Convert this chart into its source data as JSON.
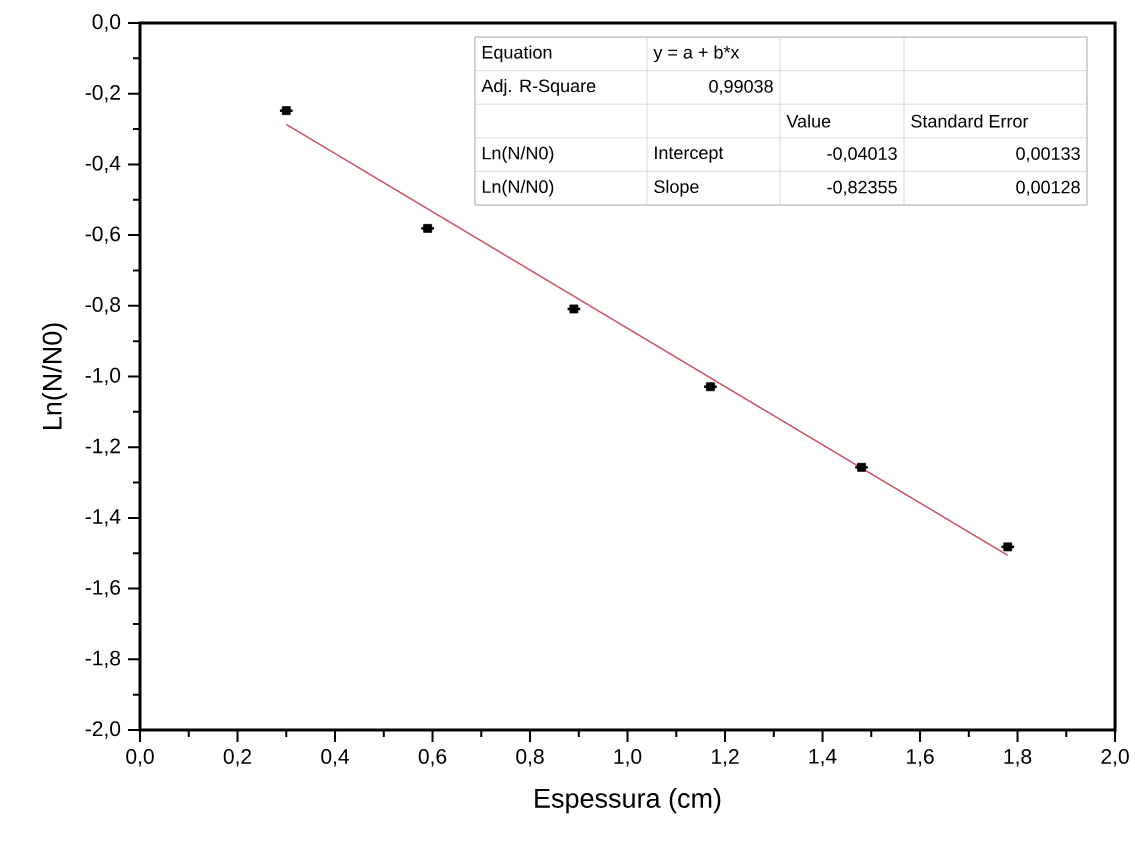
{
  "chart_data": {
    "type": "scatter",
    "xlabel": "Espessura (cm)",
    "ylabel": "Ln(N/N0)",
    "xlim": [
      0,
      2
    ],
    "ylim": [
      -2,
      0
    ],
    "xticks": [
      {
        "value": 0,
        "label": "0,0"
      },
      {
        "value": 0.2,
        "label": "0,2"
      },
      {
        "value": 0.4,
        "label": "0,4"
      },
      {
        "value": 0.6,
        "label": "0,6"
      },
      {
        "value": 0.8,
        "label": "0,8"
      },
      {
        "value": 1.0,
        "label": "1,0"
      },
      {
        "value": 1.2,
        "label": "1,2"
      },
      {
        "value": 1.4,
        "label": "1,4"
      },
      {
        "value": 1.6,
        "label": "1,6"
      },
      {
        "value": 1.8,
        "label": "1,8"
      },
      {
        "value": 2.0,
        "label": "2,0"
      }
    ],
    "yticks": [
      {
        "value": -2.0,
        "label": "-2,0"
      },
      {
        "value": -1.8,
        "label": "-1,8"
      },
      {
        "value": -1.6,
        "label": "-1,6"
      },
      {
        "value": -1.4,
        "label": "-1,4"
      },
      {
        "value": -1.2,
        "label": "-1,2"
      },
      {
        "value": -1.0,
        "label": "-1,0"
      },
      {
        "value": -0.8,
        "label": "-0,8"
      },
      {
        "value": -0.6,
        "label": "-0,6"
      },
      {
        "value": -0.4,
        "label": "-0,4"
      },
      {
        "value": -0.2,
        "label": "-0,2"
      },
      {
        "value": 0,
        "label": "0,0"
      }
    ],
    "grid": false,
    "series": [
      {
        "color": "#000000",
        "marker": "square",
        "x": [
          0.3,
          0.59,
          0.89,
          1.17,
          1.48,
          1.78
        ],
        "values": [
          -0.248,
          -0.581,
          -0.809,
          -1.029,
          -1.257,
          -1.482
        ],
        "xerrors": [
          0.013,
          0.013,
          0.013,
          0.013,
          0.013,
          0.013
        ]
      },
      {
        "type": "line",
        "color": "#d05060",
        "marker": "none",
        "line_style": "solid",
        "x": [
          0.3,
          1.78
        ],
        "values": [
          -0.287,
          -1.506
        ]
      }
    ],
    "annotations": [
      "Equation",
      "y = a + b*x",
      null,
      null,
      "Adj. R-Square",
      "0,99038",
      null,
      null,
      null,
      null,
      "Value",
      "Standard Error",
      "Ln(N/N0)",
      "Intercept",
      "-0,04013",
      "0,00133",
      "Ln(N/N0)",
      "Slope",
      "-0,82355",
      "0,00128"
    ]
  }
}
